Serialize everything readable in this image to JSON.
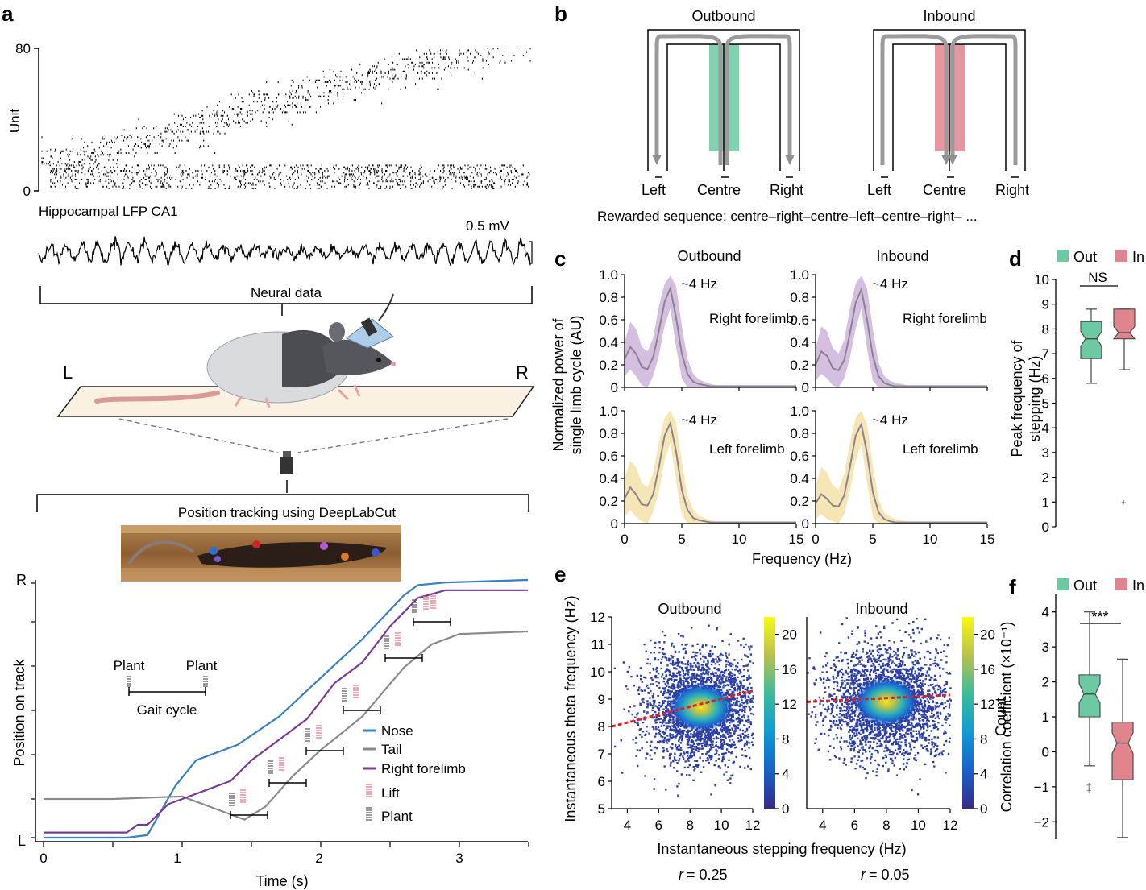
{
  "panels": {
    "a": {
      "letter": "a",
      "unit_label": "Unit",
      "unit_ticks": [
        "0",
        "80"
      ],
      "lfp_title": "Hippocampal LFP CA1",
      "scale_label": "0.5 mV",
      "neural_label": "Neural data",
      "side_left": "L",
      "side_right": "R",
      "tracking_label": "Position tracking using DeepLabCut",
      "gait": {
        "plant_left": "Plant",
        "plant_right": "Plant",
        "cycle": "Gait cycle"
      },
      "ylabel": "Position on track",
      "ytick_top": "R",
      "ytick_bottom": "L",
      "xlabel": "Time (s)",
      "xticks": [
        "0",
        "1",
        "2",
        "3"
      ],
      "legend": [
        {
          "label": "Nose",
          "color": "#3a7fc2"
        },
        {
          "label": "Tail",
          "color": "#8a8a8a"
        },
        {
          "label": "Right forelimb",
          "color": "#7a3a96"
        },
        {
          "label": "Lift",
          "color": "#e0707a"
        },
        {
          "label": "Plant",
          "color": "#555555"
        }
      ]
    },
    "b": {
      "letter": "b",
      "outbound": "Outbound",
      "inbound": "Inbound",
      "arms": [
        "Left",
        "Centre",
        "Right"
      ],
      "caption": "Rewarded sequence: centre–right–centre–left–centre–right– ...",
      "colors": {
        "out": "#6cc9a1",
        "in": "#e0848e"
      }
    },
    "c": {
      "letter": "c",
      "col_titles": [
        "Outbound",
        "Inbound"
      ],
      "peak_label": "~4 Hz",
      "row_labels": [
        "Right forelimb",
        "Left forelimb"
      ],
      "ylabel_line1": "Normalized power of",
      "ylabel_line2": "single limb cycle (AU)",
      "yticks": [
        "0",
        "0.2",
        "0.4",
        "0.6",
        "0.8",
        "1.0"
      ],
      "xticks": [
        "0",
        "5",
        "10",
        "15"
      ],
      "xlabel": "Frequency (Hz)",
      "colors": {
        "right": "#c6a9d6",
        "left": "#f3dd9e",
        "mean": "#8a8490"
      }
    },
    "d": {
      "letter": "d",
      "legend": [
        {
          "label": "Out",
          "color": "#6cc9a1"
        },
        {
          "label": "In",
          "color": "#e0848e"
        }
      ],
      "sig": "NS",
      "ylabel_line1": "Peak frequency of",
      "ylabel_line2": "stepping (Hz)",
      "yticks": [
        "0",
        "1",
        "2",
        "3",
        "4",
        "5",
        "6",
        "7",
        "8",
        "9",
        "10"
      ]
    },
    "e": {
      "letter": "e",
      "titles": [
        "Outbound",
        "Inbound"
      ],
      "ylabel": "Instantaneous theta frequency (Hz)",
      "xlabel": "Instantaneous stepping frequency (Hz)",
      "yticks": [
        "5",
        "6",
        "7",
        "8",
        "9",
        "10",
        "11",
        "12"
      ],
      "xticks": [
        "4",
        "6",
        "8",
        "10",
        "12"
      ],
      "cbar_ticks": [
        "0",
        "4",
        "8",
        "12",
        "16",
        "20"
      ],
      "cbar_label": "Count",
      "r_prefix": "r",
      "r_values": [
        "= 0.25",
        "= 0.05"
      ]
    },
    "f": {
      "letter": "f",
      "legend": [
        {
          "label": "Out",
          "color": "#6cc9a1"
        },
        {
          "label": "In",
          "color": "#e0848e"
        }
      ],
      "sig": "***",
      "ylabel": "Correlation coefficient (×10⁻¹)",
      "yticks": [
        "−2",
        "−1",
        "0",
        "1",
        "2",
        "3",
        "4"
      ]
    }
  },
  "chart_data": [
    {
      "type": "line",
      "panel": "c",
      "title": "Outbound",
      "subtitle": "Right forelimb",
      "xlabel": "Frequency (Hz)",
      "ylabel": "Normalized power of single limb cycle (AU)",
      "xlim": [
        0,
        15
      ],
      "ylim": [
        0,
        1
      ],
      "x": [
        0,
        0.5,
        1,
        1.5,
        2,
        2.5,
        3,
        3.5,
        4,
        4.5,
        5,
        5.5,
        6,
        6.5,
        7,
        7.5,
        8,
        9,
        10,
        11,
        12,
        13,
        14,
        15
      ],
      "series": [
        {
          "role": "mean",
          "values": [
            0.25,
            0.36,
            0.3,
            0.18,
            0.16,
            0.27,
            0.5,
            0.76,
            0.88,
            0.62,
            0.3,
            0.12,
            0.05,
            0.03,
            0.02,
            0.01,
            0.01,
            0.01,
            0.01,
            0.01,
            0.01,
            0.01,
            0.01,
            0.01
          ]
        },
        {
          "role": "upper",
          "values": [
            0.4,
            0.58,
            0.52,
            0.36,
            0.32,
            0.44,
            0.72,
            0.92,
            0.99,
            0.9,
            0.55,
            0.25,
            0.12,
            0.07,
            0.05,
            0.03,
            0.02,
            0.02,
            0.02,
            0.02,
            0.02,
            0.02,
            0.02,
            0.02
          ]
        },
        {
          "role": "lower",
          "values": [
            0.1,
            0.16,
            0.1,
            0.02,
            0.0,
            0.1,
            0.28,
            0.55,
            0.7,
            0.36,
            0.08,
            0.0,
            0.0,
            0.0,
            0.0,
            0.0,
            0.0,
            0.0,
            0.0,
            0.0,
            0.0,
            0.0,
            0.0,
            0.0
          ]
        }
      ]
    },
    {
      "type": "line",
      "panel": "c",
      "title": "Inbound",
      "subtitle": "Right forelimb",
      "xlabel": "Frequency (Hz)",
      "xlim": [
        0,
        15
      ],
      "ylim": [
        0,
        1
      ],
      "x": [
        0,
        0.5,
        1,
        1.5,
        2,
        2.5,
        3,
        3.5,
        4,
        4.5,
        5,
        5.5,
        6,
        6.5,
        7,
        7.5,
        8,
        9,
        10,
        11,
        12,
        13,
        14,
        15
      ],
      "series": [
        {
          "role": "mean",
          "values": [
            0.2,
            0.32,
            0.28,
            0.17,
            0.15,
            0.24,
            0.48,
            0.75,
            0.87,
            0.6,
            0.28,
            0.1,
            0.04,
            0.02,
            0.01,
            0.01,
            0.01,
            0.01,
            0.01,
            0.01,
            0.01,
            0.01,
            0.01,
            0.01
          ]
        },
        {
          "role": "upper",
          "values": [
            0.35,
            0.54,
            0.5,
            0.35,
            0.3,
            0.42,
            0.7,
            0.92,
            0.99,
            0.88,
            0.52,
            0.22,
            0.1,
            0.06,
            0.04,
            0.03,
            0.02,
            0.02,
            0.02,
            0.02,
            0.02,
            0.02,
            0.02,
            0.02
          ]
        },
        {
          "role": "lower",
          "values": [
            0.06,
            0.12,
            0.08,
            0.02,
            0.0,
            0.08,
            0.26,
            0.52,
            0.7,
            0.34,
            0.06,
            0.0,
            0.0,
            0.0,
            0.0,
            0.0,
            0.0,
            0.0,
            0.0,
            0.0,
            0.0,
            0.0,
            0.0,
            0.0
          ]
        }
      ]
    },
    {
      "type": "line",
      "panel": "c",
      "title": "Outbound",
      "subtitle": "Left forelimb",
      "xlabel": "Frequency (Hz)",
      "xlim": [
        0,
        15
      ],
      "ylim": [
        0,
        1
      ],
      "x": [
        0,
        0.5,
        1,
        1.5,
        2,
        2.5,
        3,
        3.5,
        4,
        4.5,
        5,
        5.5,
        6,
        6.5,
        7,
        7.5,
        8,
        9,
        10,
        11,
        12,
        13,
        14,
        15
      ],
      "series": [
        {
          "role": "mean",
          "values": [
            0.22,
            0.32,
            0.26,
            0.17,
            0.16,
            0.26,
            0.5,
            0.78,
            0.89,
            0.64,
            0.3,
            0.12,
            0.05,
            0.03,
            0.02,
            0.01,
            0.01,
            0.01,
            0.01,
            0.01,
            0.01,
            0.01,
            0.01,
            0.01
          ]
        },
        {
          "role": "upper",
          "values": [
            0.4,
            0.56,
            0.5,
            0.36,
            0.32,
            0.45,
            0.72,
            0.94,
            1.0,
            0.9,
            0.55,
            0.25,
            0.12,
            0.07,
            0.05,
            0.03,
            0.02,
            0.02,
            0.02,
            0.02,
            0.02,
            0.02,
            0.02,
            0.02
          ]
        },
        {
          "role": "lower",
          "values": [
            0.06,
            0.12,
            0.06,
            0.02,
            0.0,
            0.1,
            0.28,
            0.56,
            0.72,
            0.38,
            0.08,
            0.0,
            0.0,
            0.0,
            0.0,
            0.0,
            0.0,
            0.0,
            0.0,
            0.0,
            0.0,
            0.0,
            0.0,
            0.0
          ]
        }
      ]
    },
    {
      "type": "line",
      "panel": "c",
      "title": "Inbound",
      "subtitle": "Left forelimb",
      "xlabel": "Frequency (Hz)",
      "xlim": [
        0,
        15
      ],
      "ylim": [
        0,
        1
      ],
      "x": [
        0,
        0.5,
        1,
        1.5,
        2,
        2.5,
        3,
        3.5,
        4,
        4.5,
        5,
        5.5,
        6,
        6.5,
        7,
        7.5,
        8,
        9,
        10,
        11,
        12,
        13,
        14,
        15
      ],
      "series": [
        {
          "role": "mean",
          "values": [
            0.18,
            0.26,
            0.22,
            0.16,
            0.15,
            0.25,
            0.5,
            0.78,
            0.88,
            0.62,
            0.28,
            0.1,
            0.04,
            0.02,
            0.01,
            0.01,
            0.01,
            0.01,
            0.01,
            0.01,
            0.01,
            0.01,
            0.01,
            0.01
          ]
        },
        {
          "role": "upper",
          "values": [
            0.34,
            0.5,
            0.45,
            0.34,
            0.3,
            0.44,
            0.72,
            0.94,
            1.0,
            0.88,
            0.52,
            0.22,
            0.1,
            0.06,
            0.04,
            0.03,
            0.02,
            0.02,
            0.02,
            0.02,
            0.02,
            0.02,
            0.02,
            0.02
          ]
        },
        {
          "role": "lower",
          "values": [
            0.04,
            0.08,
            0.04,
            0.02,
            0.0,
            0.08,
            0.28,
            0.56,
            0.7,
            0.36,
            0.06,
            0.0,
            0.0,
            0.0,
            0.0,
            0.0,
            0.0,
            0.0,
            0.0,
            0.0,
            0.0,
            0.0,
            0.0,
            0.0
          ]
        }
      ]
    },
    {
      "type": "box",
      "panel": "d",
      "ylabel": "Peak frequency of stepping (Hz)",
      "ylim": [
        0,
        10
      ],
      "series": [
        {
          "name": "Out",
          "color": "#6cc9a1",
          "whisker_low": 5.8,
          "q1": 6.8,
          "median": 7.6,
          "q3": 8.3,
          "whisker_high": 8.8,
          "notch": [
            7.3,
            7.9
          ],
          "outliers": []
        },
        {
          "name": "In",
          "color": "#e0848e",
          "whisker_low": 6.35,
          "q1": 7.6,
          "median": 7.85,
          "q3": 8.8,
          "whisker_high": 8.8,
          "notch": [
            7.6,
            8.1
          ],
          "outliers": [
            1.0
          ]
        }
      ]
    },
    {
      "type": "heatmap",
      "panel": "e",
      "title": "Outbound",
      "xlabel": "Instantaneous stepping frequency (Hz)",
      "ylabel": "Instantaneous theta frequency (Hz)",
      "xlim": [
        3,
        12
      ],
      "ylim": [
        5,
        12
      ],
      "colorbar": {
        "label": "Count",
        "range": [
          0,
          22
        ]
      },
      "density_peak": {
        "x": 8.7,
        "y": 8.7
      },
      "fit_line": {
        "x": [
          3,
          12
        ],
        "y": [
          8.0,
          9.3
        ]
      },
      "r": 0.25
    },
    {
      "type": "heatmap",
      "panel": "e",
      "title": "Inbound",
      "xlabel": "Instantaneous stepping frequency (Hz)",
      "xlim": [
        3,
        12
      ],
      "ylim": [
        5,
        12
      ],
      "colorbar": {
        "label": "Count",
        "range": [
          0,
          22
        ]
      },
      "density_peak": {
        "x": 8.0,
        "y": 8.9
      },
      "fit_line": {
        "x": [
          3,
          12
        ],
        "y": [
          8.9,
          9.15
        ]
      },
      "r": 0.05
    },
    {
      "type": "box",
      "panel": "f",
      "ylabel": "Correlation coefficient (×10⁻¹)",
      "ylim": [
        -2.5,
        4.5
      ],
      "series": [
        {
          "name": "Out",
          "color": "#6cc9a1",
          "whisker_low": -0.4,
          "q1": 1.0,
          "median": 1.65,
          "q3": 2.2,
          "whisker_high": 4.0,
          "notch": [
            1.4,
            1.95
          ],
          "outliers": [
            -0.95,
            -1.05,
            -1.1
          ]
        },
        {
          "name": "In",
          "color": "#e0848e",
          "whisker_low": -2.45,
          "q1": -0.8,
          "median": 0.25,
          "q3": 0.85,
          "whisker_high": 2.65,
          "notch": [
            -0.05,
            0.55
          ],
          "outliers": []
        }
      ]
    },
    {
      "type": "line",
      "panel": "a",
      "xlabel": "Time (s)",
      "ylabel": "Position on track",
      "xlim": [
        0,
        3.5
      ],
      "series": [
        {
          "name": "Nose",
          "x": [
            0,
            0.6,
            0.75,
            0.95,
            1.1,
            1.4,
            1.7,
            2.0,
            2.3,
            2.6,
            2.7,
            2.9,
            3.5
          ],
          "y": [
            0.0,
            0.0,
            0.01,
            0.2,
            0.3,
            0.36,
            0.47,
            0.62,
            0.77,
            0.94,
            0.98,
            0.99,
            1.0
          ]
        },
        {
          "name": "Tail",
          "x": [
            0,
            0.5,
            1.0,
            1.2,
            1.45,
            1.6,
            1.8,
            2.0,
            2.3,
            2.6,
            2.8,
            3.0,
            3.5
          ],
          "y": [
            0.15,
            0.15,
            0.16,
            0.12,
            0.07,
            0.12,
            0.24,
            0.34,
            0.47,
            0.66,
            0.75,
            0.79,
            0.8
          ]
        },
        {
          "name": "Right forelimb",
          "x": [
            0,
            0.6,
            0.68,
            0.75,
            0.9,
            1.1,
            1.35,
            1.5,
            1.7,
            1.9,
            2.1,
            2.3,
            2.5,
            2.7,
            2.9,
            3.5
          ],
          "y": [
            0.02,
            0.02,
            0.05,
            0.05,
            0.13,
            0.17,
            0.22,
            0.3,
            0.38,
            0.46,
            0.6,
            0.68,
            0.82,
            0.93,
            0.96,
            0.96
          ]
        }
      ]
    }
  ]
}
